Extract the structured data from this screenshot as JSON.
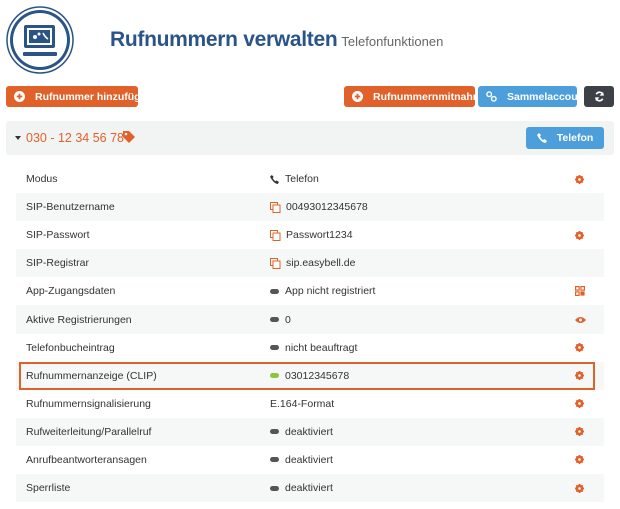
{
  "header": {
    "title": "Rufnummern verwalten",
    "subtitle": "Telefonfunktionen"
  },
  "toolbar": {
    "add_number": "Rufnummer hinzufügen",
    "porting": "Rufnummernmitnahme",
    "group_account": "Sammelaccount",
    "refresh_icon": "refresh-icon"
  },
  "number": {
    "value": "030 - 12 34 56 78",
    "mode_button": "Telefon"
  },
  "colors": {
    "accent": "#e0622a",
    "blue": "#4d9fdc",
    "title": "#2a5488",
    "status_active": "#8cc63f"
  },
  "rows": [
    {
      "label": "Modus",
      "value": "Telefon",
      "value_icon": "phone",
      "action": "gear"
    },
    {
      "label": "SIP-Benutzername",
      "value": "00493012345678",
      "value_icon": "copy",
      "action": ""
    },
    {
      "label": "SIP-Passwort",
      "value": "Passwort1234",
      "value_icon": "copy",
      "action": "gear"
    },
    {
      "label": "SIP-Registrar",
      "value": "sip.easybell.de",
      "value_icon": "copy",
      "action": ""
    },
    {
      "label": "App-Zugangsdaten",
      "value": "App nicht registriert",
      "value_icon": "status-off",
      "action": "qr"
    },
    {
      "label": "Aktive Registrierungen",
      "value": "0",
      "value_icon": "status-off",
      "action": "eye"
    },
    {
      "label": "Telefonbucheintrag",
      "value": "nicht beauftragt",
      "value_icon": "status-off",
      "action": "gear"
    },
    {
      "label": "Rufnummernanzeige (CLIP)",
      "value": "03012345678",
      "value_icon": "status-on",
      "action": "gear",
      "highlighted": true
    },
    {
      "label": "Rufnummernsignalisierung",
      "value": "E.164-Format",
      "value_icon": "",
      "action": "gear"
    },
    {
      "label": "Rufweiterleitung/Parallelruf",
      "value": "deaktiviert",
      "value_icon": "status-off",
      "action": "gear"
    },
    {
      "label": "Anrufbeantworteransagen",
      "value": "deaktiviert",
      "value_icon": "status-off",
      "action": "gear"
    },
    {
      "label": "Sperrliste",
      "value": "deaktiviert",
      "value_icon": "status-off",
      "action": "gear"
    }
  ]
}
